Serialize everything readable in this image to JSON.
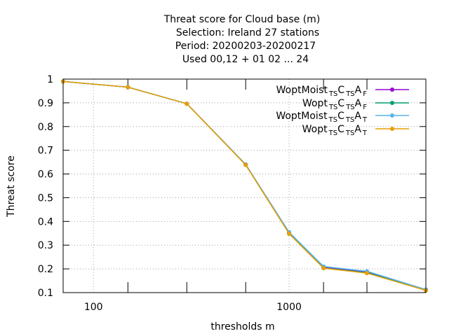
{
  "chart_data": {
    "type": "line",
    "title_lines": [
      "Threat score  for Cloud base (m)",
      "Selection: Ireland      27 stations",
      "Period: 20200203-20200217",
      "Used  00,12  + 01 02 ... 24"
    ],
    "xlabel": "thresholds m",
    "ylabel": "Threat score",
    "x_scale": "log",
    "xlim": [
      70,
      5000
    ],
    "ylim": [
      0.1,
      1.0
    ],
    "x_tick_labels": [
      {
        "value": 100,
        "label": "100"
      },
      {
        "value": 1000,
        "label": "1000"
      }
    ],
    "x_minor_ticks": [
      70,
      150,
      300,
      600,
      1500,
      2500,
      5000
    ],
    "y_ticks": [
      {
        "value": 0.1,
        "label": "0.1"
      },
      {
        "value": 0.2,
        "label": "0.2"
      },
      {
        "value": 0.3,
        "label": "0.3"
      },
      {
        "value": 0.4,
        "label": "0.4"
      },
      {
        "value": 0.5,
        "label": "0.5"
      },
      {
        "value": 0.6,
        "label": "0.6"
      },
      {
        "value": 0.7,
        "label": "0.7"
      },
      {
        "value": 0.8,
        "label": "0.8"
      },
      {
        "value": 0.9,
        "label": "0.9"
      },
      {
        "value": 1.0,
        "label": "1"
      }
    ],
    "grid": true,
    "legend_position": "top-right",
    "x": [
      70,
      150,
      300,
      600,
      1000,
      1500,
      2500,
      5000
    ],
    "series": [
      {
        "name": "WoptMoist",
        "sub1": "TS",
        "mid": "C",
        "sub2": "TS",
        "tail": "A",
        "sub3": "F",
        "color": "#9400d3",
        "values": [
          0.99,
          0.966,
          0.896,
          0.64,
          0.353,
          0.208,
          0.188,
          0.112
        ]
      },
      {
        "name": "Wopt",
        "sub1": "TS",
        "mid": "C",
        "sub2": "TS",
        "tail": "A",
        "sub3": "F",
        "color": "#009e73",
        "values": [
          0.99,
          0.966,
          0.896,
          0.64,
          0.35,
          0.204,
          0.184,
          0.11
        ]
      },
      {
        "name": "WoptMoist",
        "sub1": "TS",
        "mid": "C",
        "sub2": "TS",
        "tail": "A",
        "sub3": "T",
        "color": "#56b4e9",
        "values": [
          0.99,
          0.966,
          0.896,
          0.64,
          0.355,
          0.21,
          0.19,
          0.113
        ]
      },
      {
        "name": "Wopt",
        "sub1": "TS",
        "mid": "C",
        "sub2": "TS",
        "tail": "A",
        "sub3": "T",
        "color": "#e69f00",
        "values": [
          0.99,
          0.966,
          0.896,
          0.638,
          0.348,
          0.203,
          0.182,
          0.109
        ]
      }
    ]
  }
}
